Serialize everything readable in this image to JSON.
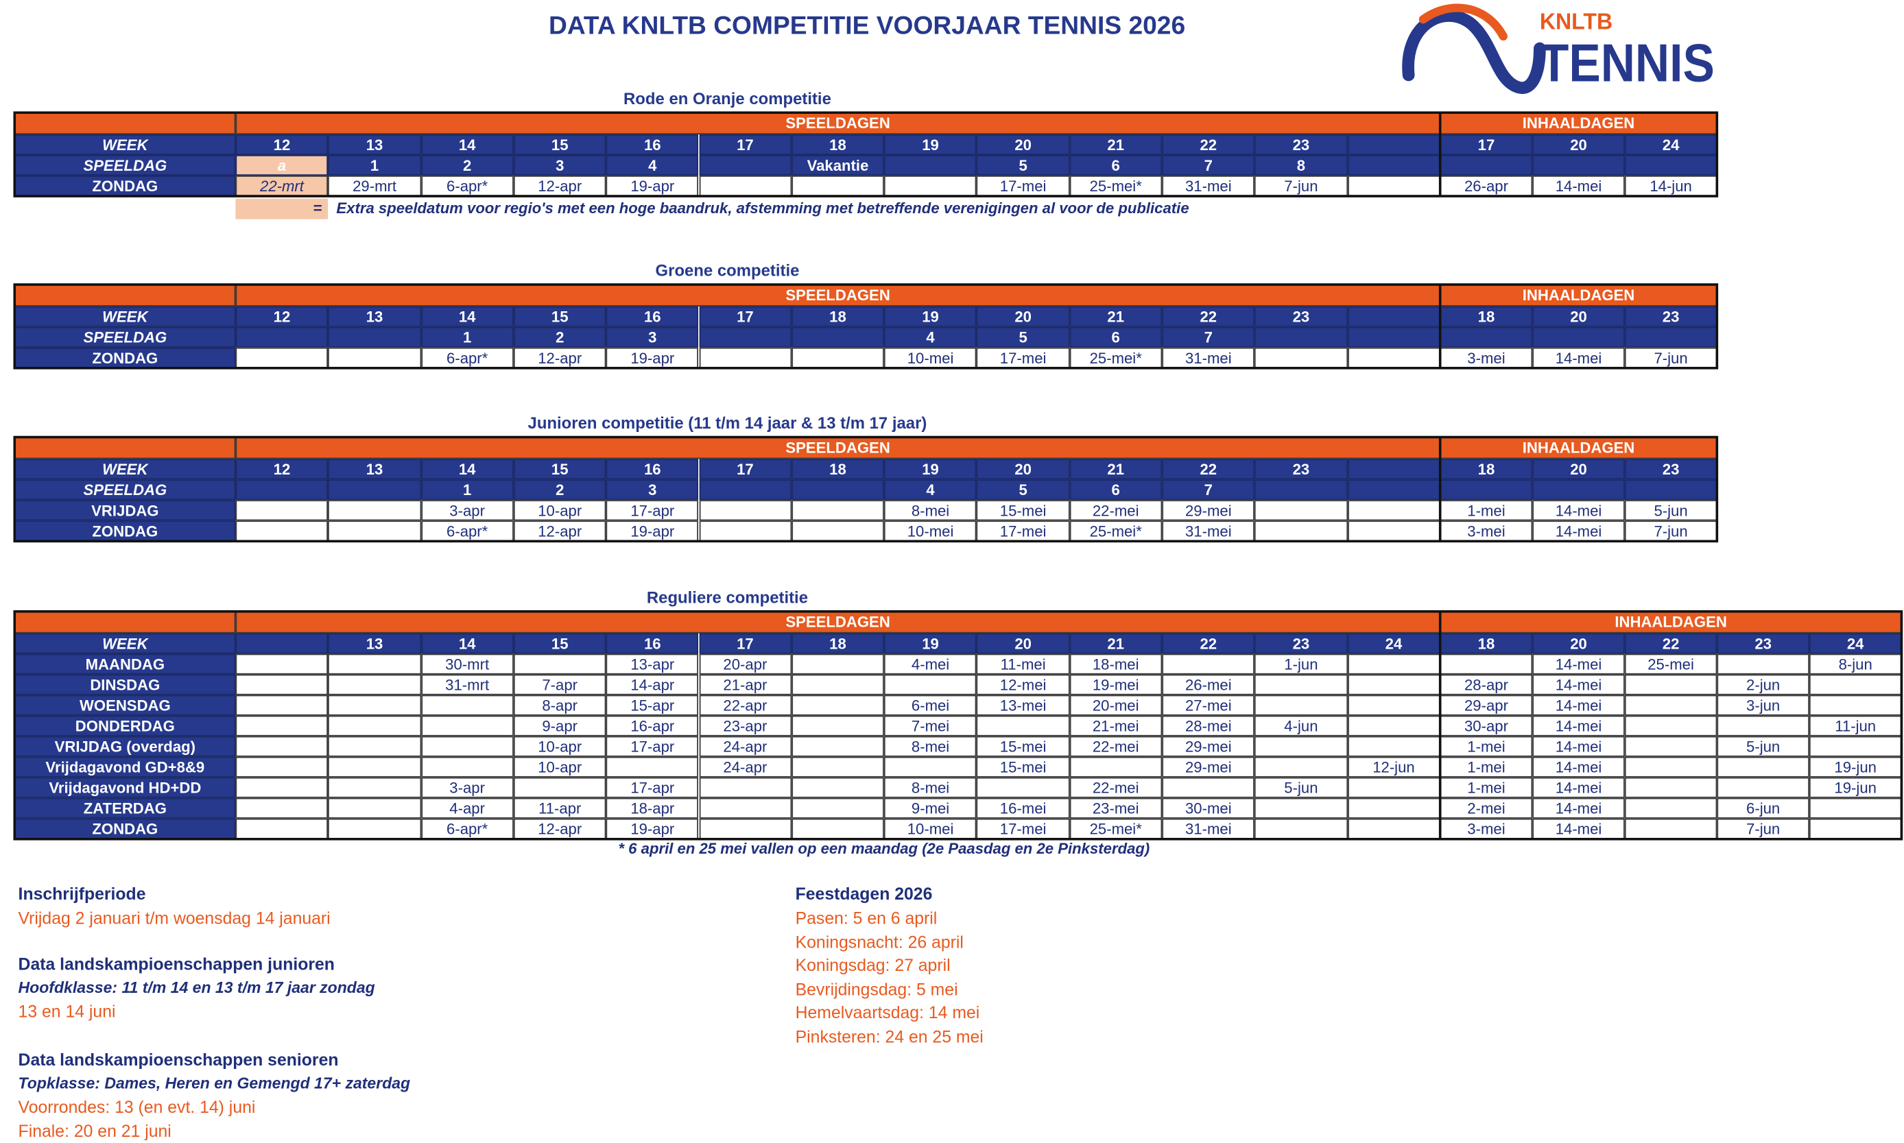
{
  "header": {
    "title": "DATA KNLTB COMPETITIE VOORJAAR TENNIS 2026",
    "logo_top": "KNLTB",
    "logo_bottom": "TENNIS"
  },
  "tables": [
    {
      "title": "Rode en Oranje competitie",
      "groups": [
        "SPEELDAGEN",
        "INHAALDAGEN"
      ],
      "rows": [
        {
          "label": "WEEK",
          "cells": [
            12,
            13,
            14,
            15,
            16,
            17,
            18,
            19,
            20,
            21,
            22,
            23,
            null,
            17,
            20,
            24
          ]
        },
        {
          "label": "SPEELDAG",
          "cells": [
            "a",
            1,
            2,
            3,
            4,
            null,
            "Vakantie",
            null,
            5,
            6,
            7,
            8,
            null,
            null,
            null,
            null
          ]
        },
        {
          "label": "ZONDAG",
          "cells": [
            "22-mrt",
            "29-mrt",
            "6-apr*",
            "12-apr",
            "19-apr",
            null,
            null,
            null,
            "17-mei",
            "25-mei*",
            "31-mei",
            "7-jun",
            null,
            "26-apr",
            "14-mei",
            "14-jun"
          ]
        }
      ],
      "note": {
        "symbol": "=",
        "text": "Extra speeldatum voor regio's met een hoge baandruk, afstemming met betreffende verenigingen al voor de publicatie"
      }
    },
    {
      "title": "Groene competitie",
      "groups": [
        "SPEELDAGEN",
        "INHAALDAGEN"
      ],
      "rows": [
        {
          "label": "WEEK",
          "cells": [
            12,
            13,
            14,
            15,
            16,
            17,
            18,
            19,
            20,
            21,
            22,
            23,
            null,
            18,
            20,
            23
          ]
        },
        {
          "label": "SPEELDAG",
          "cells": [
            null,
            null,
            1,
            2,
            3,
            null,
            null,
            4,
            5,
            6,
            7,
            null,
            null,
            null,
            null,
            null
          ]
        },
        {
          "label": "ZONDAG",
          "cells": [
            null,
            null,
            "6-apr*",
            "12-apr",
            "19-apr",
            null,
            null,
            "10-mei",
            "17-mei",
            "25-mei*",
            "31-mei",
            null,
            null,
            "3-mei",
            "14-mei",
            "7-jun"
          ]
        }
      ]
    },
    {
      "title": "Junioren competitie (11 t/m 14 jaar & 13 t/m 17 jaar)",
      "groups": [
        "SPEELDAGEN",
        "INHAALDAGEN"
      ],
      "rows": [
        {
          "label": "WEEK",
          "cells": [
            12,
            13,
            14,
            15,
            16,
            17,
            18,
            19,
            20,
            21,
            22,
            23,
            null,
            18,
            20,
            23
          ]
        },
        {
          "label": "SPEELDAG",
          "cells": [
            null,
            null,
            1,
            2,
            3,
            null,
            null,
            4,
            5,
            6,
            7,
            null,
            null,
            null,
            null,
            null
          ]
        },
        {
          "label": "VRIJDAG",
          "cells": [
            null,
            null,
            "3-apr",
            "10-apr",
            "17-apr",
            null,
            null,
            "8-mei",
            "15-mei",
            "22-mei",
            "29-mei",
            null,
            null,
            "1-mei",
            "14-mei",
            "5-jun"
          ]
        },
        {
          "label": "ZONDAG",
          "cells": [
            null,
            null,
            "6-apr*",
            "12-apr",
            "19-apr",
            null,
            null,
            "10-mei",
            "17-mei",
            "25-mei*",
            "31-mei",
            null,
            null,
            "3-mei",
            "14-mei",
            "7-jun"
          ]
        }
      ]
    },
    {
      "title": "Reguliere competitie",
      "groups": [
        "SPEELDAGEN",
        "INHAALDAGEN"
      ],
      "rows": [
        {
          "label": "WEEK",
          "cells": [
            null,
            13,
            14,
            15,
            16,
            17,
            18,
            19,
            20,
            21,
            22,
            23,
            24,
            18,
            20,
            22,
            23,
            24
          ]
        },
        {
          "label": "MAANDAG",
          "cells": [
            null,
            null,
            "30-mrt",
            null,
            "13-apr",
            "20-apr",
            null,
            "4-mei",
            "11-mei",
            "18-mei",
            null,
            "1-jun",
            null,
            null,
            "14-mei",
            "25-mei",
            null,
            "8-jun"
          ]
        },
        {
          "label": "DINSDAG",
          "cells": [
            null,
            null,
            "31-mrt",
            "7-apr",
            "14-apr",
            "21-apr",
            null,
            null,
            "12-mei",
            "19-mei",
            "26-mei",
            null,
            null,
            "28-apr",
            "14-mei",
            null,
            "2-jun",
            null
          ]
        },
        {
          "label": "WOENSDAG",
          "cells": [
            null,
            null,
            null,
            "8-apr",
            "15-apr",
            "22-apr",
            null,
            "6-mei",
            "13-mei",
            "20-mei",
            "27-mei",
            null,
            null,
            "29-apr",
            "14-mei",
            null,
            "3-jun",
            null
          ]
        },
        {
          "label": "DONDERDAG",
          "cells": [
            null,
            null,
            null,
            "9-apr",
            "16-apr",
            "23-apr",
            null,
            "7-mei",
            null,
            "21-mei",
            "28-mei",
            "4-jun",
            null,
            "30-apr",
            "14-mei",
            null,
            null,
            "11-jun"
          ]
        },
        {
          "label": "VRIJDAG (overdag)",
          "cells": [
            null,
            null,
            null,
            "10-apr",
            "17-apr",
            "24-apr",
            null,
            "8-mei",
            "15-mei",
            "22-mei",
            "29-mei",
            null,
            null,
            "1-mei",
            "14-mei",
            null,
            "5-jun",
            null
          ]
        },
        {
          "label": "Vrijdagavond GD+8&9",
          "cells": [
            null,
            null,
            null,
            "10-apr",
            null,
            "24-apr",
            null,
            null,
            "15-mei",
            null,
            "29-mei",
            null,
            "12-jun",
            "1-mei",
            "14-mei",
            null,
            null,
            "19-jun"
          ]
        },
        {
          "label": "Vrijdagavond HD+DD",
          "cells": [
            null,
            null,
            "3-apr",
            null,
            "17-apr",
            null,
            null,
            "8-mei",
            null,
            "22-mei",
            null,
            "5-jun",
            null,
            "1-mei",
            "14-mei",
            null,
            null,
            "19-jun"
          ]
        },
        {
          "label": "ZATERDAG",
          "cells": [
            null,
            null,
            "4-apr",
            "11-apr",
            "18-apr",
            null,
            null,
            "9-mei",
            "16-mei",
            "23-mei",
            "30-mei",
            null,
            null,
            "2-mei",
            "14-mei",
            null,
            "6-jun",
            null
          ]
        },
        {
          "label": "ZONDAG",
          "cells": [
            null,
            null,
            "6-apr*",
            "12-apr",
            "19-apr",
            null,
            null,
            "10-mei",
            "17-mei",
            "25-mei*",
            "31-mei",
            null,
            null,
            "3-mei",
            "14-mei",
            null,
            "7-jun",
            null
          ]
        }
      ],
      "footnote": "* 6 april  en 25 mei vallen op een maandag (2e Paasdag en 2e Pinksterdag)"
    }
  ],
  "info_left": [
    {
      "heading": "Inschrijfperiode",
      "lines": [
        "Vrijdag 2 januari t/m woensdag 14 januari"
      ]
    },
    {
      "heading": "Data landskampioenschappen junioren",
      "subheading": "Hoofdklasse: 11 t/m 14 en 13 t/m 17 jaar zondag",
      "lines": [
        "13 en 14 juni"
      ]
    },
    {
      "heading": "Data landskampioenschappen senioren",
      "subheading": "Topklasse: Dames, Heren en Gemengd 17+ zaterdag",
      "lines": [
        "Voorrondes: 13 (en evt. 14) juni",
        "Finale: 20 en 21 juni"
      ]
    }
  ],
  "info_right": {
    "heading": "Feestdagen 2026",
    "lines": [
      "Pasen: 5 en 6 april",
      "Koningsnacht: 26 april",
      "Koningsdag: 27 april",
      "Bevrijdingsdag: 5 mei",
      "Hemelvaartsdag: 14 mei",
      "Pinksteren: 24 en 25 mei"
    ]
  }
}
